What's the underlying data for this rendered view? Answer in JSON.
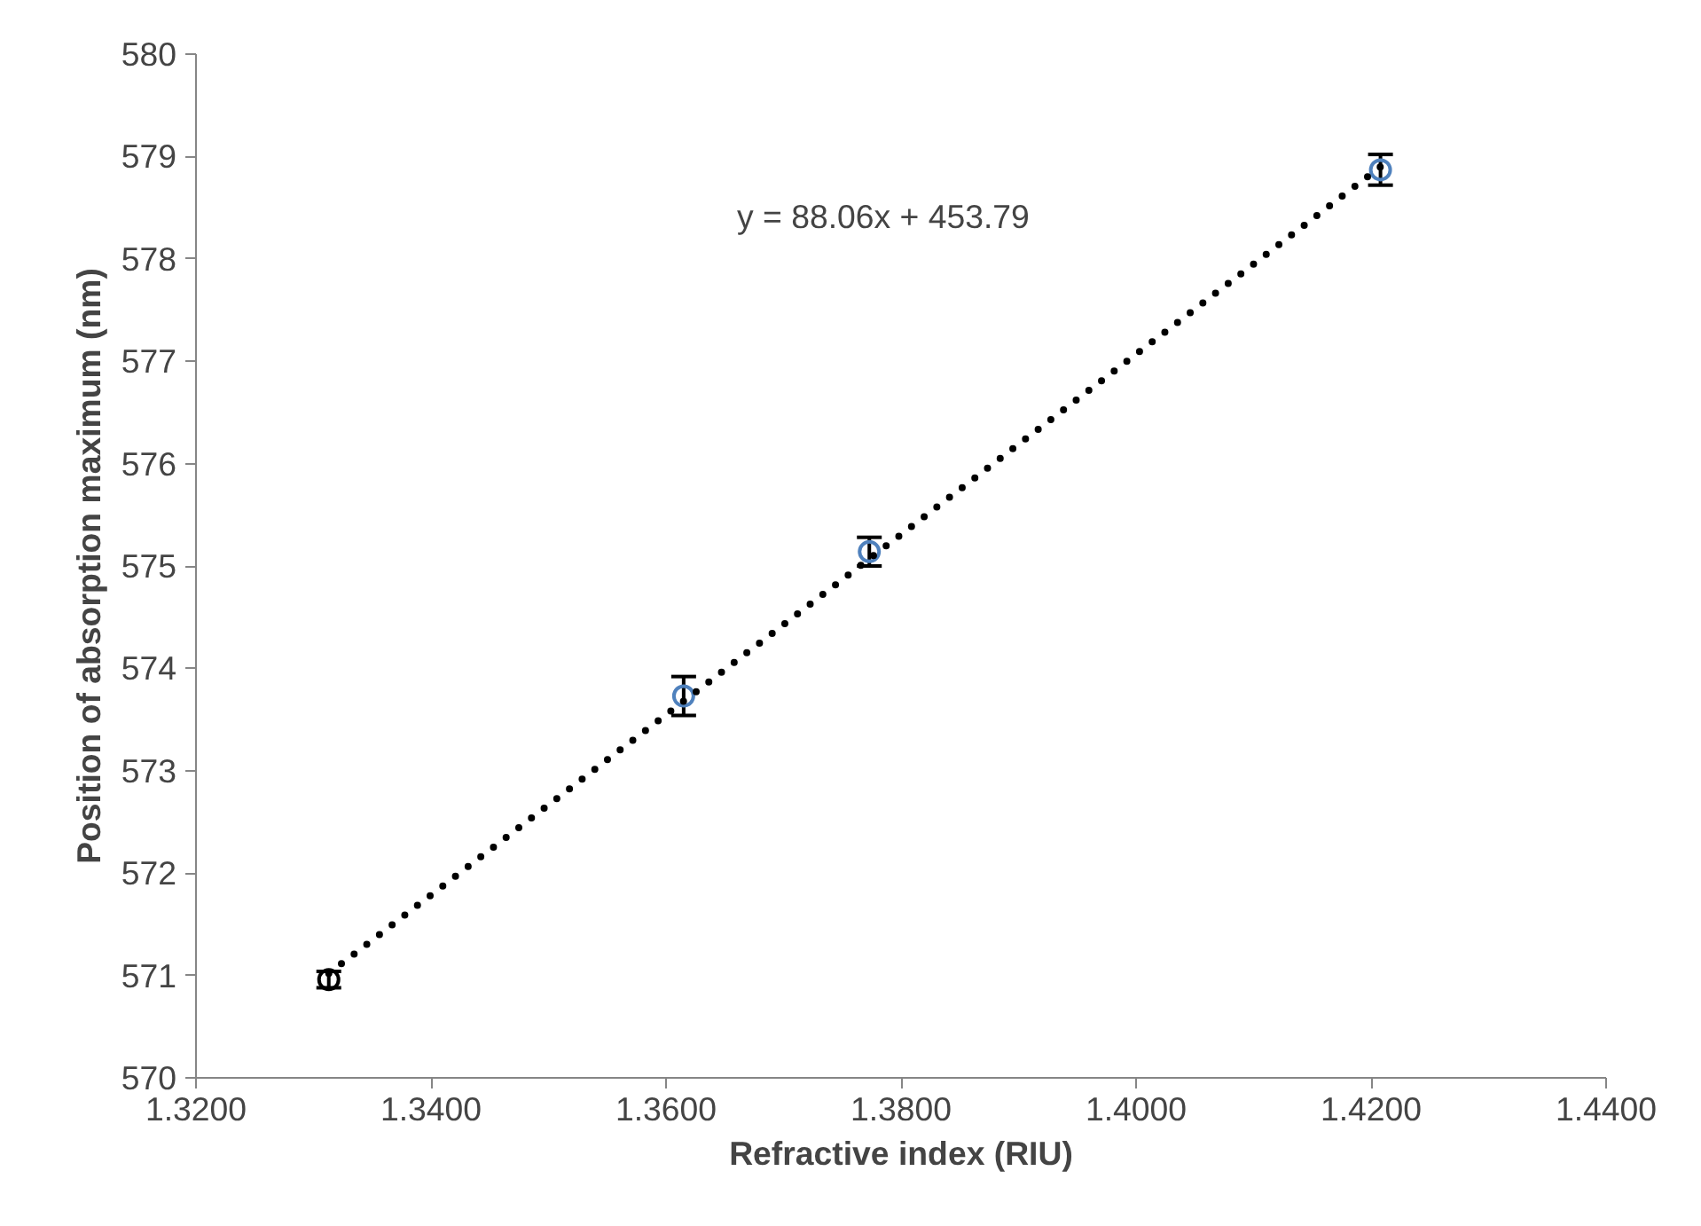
{
  "chart_data": {
    "type": "scatter",
    "xlabel": "Refractive index (RIU)",
    "ylabel": "Position of absorption maximum (nm)",
    "xlim": [
      1.32,
      1.44
    ],
    "ylim": [
      570,
      580
    ],
    "xticks": [
      {
        "value": 1.32,
        "label": "1.3200"
      },
      {
        "value": 1.34,
        "label": "1.3400"
      },
      {
        "value": 1.36,
        "label": "1.3600"
      },
      {
        "value": 1.38,
        "label": "1.3800"
      },
      {
        "value": 1.4,
        "label": "1.4000"
      },
      {
        "value": 1.42,
        "label": "1.4200"
      },
      {
        "value": 1.44,
        "label": "1.4400"
      }
    ],
    "yticks": [
      570,
      571,
      572,
      573,
      574,
      575,
      576,
      577,
      578,
      579,
      580
    ],
    "grid": false,
    "marker": "circle",
    "annotations": [
      "y = 88.06x + 453.79"
    ],
    "series": [
      {
        "x": [
          1.3313,
          1.3615,
          1.3773,
          1.4208
        ],
        "values": [
          570.96,
          573.73,
          575.14,
          578.87
        ],
        "colors": [
          "#000000",
          "#4f81bd",
          "#4f81bd",
          "#4f81bd"
        ],
        "errors": [
          0.08,
          0.19,
          0.14,
          0.15
        ]
      },
      {
        "type": "line",
        "x": [
          1.3313,
          1.4208
        ],
        "values": [
          571.02,
          578.9
        ],
        "color": "#000000",
        "line_style": "dotted",
        "marker": "none"
      }
    ]
  }
}
